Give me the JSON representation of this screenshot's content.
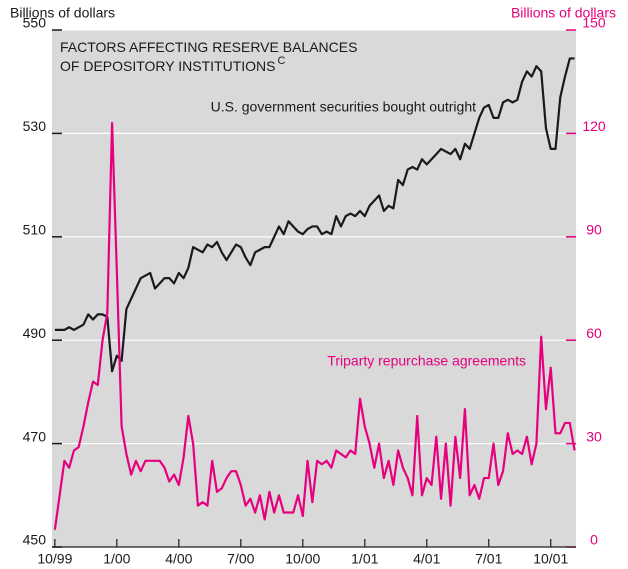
{
  "chart_data": {
    "type": "line",
    "title": [
      "FACTORS AFFECTING RESERVE BALANCES",
      "OF DEPOSITORY INSTITUTIONS"
    ],
    "title_superscript": "C",
    "ylabel": "Billions of dollars",
    "y2label": "Billions of dollars",
    "x": [
      0,
      1,
      2,
      3,
      4,
      5,
      6,
      7,
      8,
      9,
      10,
      11,
      12,
      13,
      14,
      15,
      16,
      17,
      18,
      19,
      20,
      21,
      22,
      23,
      24,
      25,
      26,
      27,
      28,
      29,
      30,
      31,
      32,
      33,
      34,
      35,
      36,
      37,
      38,
      39,
      40,
      41,
      42,
      43,
      44,
      45,
      46,
      47,
      48,
      49,
      50,
      51,
      52,
      53,
      54,
      55,
      56,
      57,
      58,
      59,
      60,
      61,
      62,
      63,
      64,
      65,
      66,
      67,
      68,
      69,
      70,
      71,
      72,
      73,
      74,
      75,
      76,
      77,
      78,
      79,
      80,
      81,
      82,
      83,
      84,
      85,
      86,
      87,
      88,
      89,
      90,
      91,
      92,
      93,
      94,
      95,
      96,
      97,
      98,
      99,
      100,
      101,
      102,
      103,
      104,
      105,
      106,
      107,
      108,
      109
    ],
    "xlim": [
      -0.6,
      109.3
    ],
    "xticks": [
      {
        "value": 0,
        "label": "10/99"
      },
      {
        "value": 13,
        "label": "1/00"
      },
      {
        "value": 26,
        "label": "4/00"
      },
      {
        "value": 39,
        "label": "7/00"
      },
      {
        "value": 52,
        "label": "10/00"
      },
      {
        "value": 65,
        "label": "1/01"
      },
      {
        "value": 78,
        "label": "4/01"
      },
      {
        "value": 91,
        "label": "7/01"
      },
      {
        "value": 104,
        "label": "10/01"
      }
    ],
    "ylim": [
      450,
      550
    ],
    "yticks": [
      450,
      470,
      490,
      510,
      530,
      550
    ],
    "y2lim": [
      0,
      150
    ],
    "y2ticks": [
      0,
      30,
      60,
      90,
      120,
      150
    ],
    "grid": true,
    "series": [
      {
        "name": "U.S. government securities bought outright",
        "color": "#1a1a1a",
        "axis": "y",
        "values": [
          492,
          492,
          492,
          492.5,
          492,
          492.5,
          493,
          495,
          494,
          495,
          495,
          494.5,
          484,
          487,
          486,
          496,
          498,
          500,
          502,
          502.5,
          503,
          500,
          501,
          502,
          502,
          501,
          503,
          502,
          504,
          508,
          507.5,
          507,
          508.5,
          508,
          509,
          507,
          505.5,
          507,
          508.5,
          508,
          506,
          504.5,
          507,
          507.5,
          508,
          508,
          510,
          512,
          510.5,
          513,
          512,
          511,
          510.5,
          511.5,
          512,
          512,
          510.5,
          511,
          510.5,
          514,
          512,
          514,
          514.5,
          514,
          515,
          514,
          516,
          517,
          518,
          515,
          516,
          515.5,
          521,
          520,
          523,
          523.5,
          523,
          525,
          524,
          525,
          526,
          527,
          526.5,
          526,
          527,
          525,
          528,
          527,
          530,
          533,
          535,
          535.5,
          533,
          533,
          536,
          536.5,
          536,
          536.5,
          540,
          542,
          541,
          543,
          542,
          531,
          527,
          527,
          537,
          541,
          544.5,
          544.5
        ]
      },
      {
        "name": "Triparty repurchase agreements",
        "color": "#e6007e",
        "axis": "y2",
        "values": [
          5,
          15,
          25,
          23,
          28,
          29,
          35,
          42,
          48,
          47,
          60,
          68,
          123,
          80,
          35,
          27,
          21,
          25,
          22,
          25,
          25,
          25,
          25,
          23,
          19,
          21,
          18,
          26,
          38,
          30,
          12,
          13,
          12,
          25,
          16,
          17,
          20,
          22,
          22,
          18,
          12,
          14,
          10,
          15,
          8,
          16,
          10,
          15,
          10,
          10,
          10,
          15,
          9,
          25,
          13,
          25,
          24,
          25,
          23,
          28,
          27,
          26,
          28,
          27,
          43,
          35,
          30,
          23,
          30,
          20,
          25,
          18,
          28,
          23,
          20,
          15,
          38,
          15,
          20,
          18,
          32,
          14,
          30,
          12,
          32,
          20,
          40,
          15,
          18,
          14,
          20,
          20,
          30,
          18,
          22,
          33,
          27,
          28,
          27,
          32,
          24,
          30,
          61,
          40,
          52,
          33,
          33,
          36,
          36,
          28
        ]
      }
    ]
  }
}
